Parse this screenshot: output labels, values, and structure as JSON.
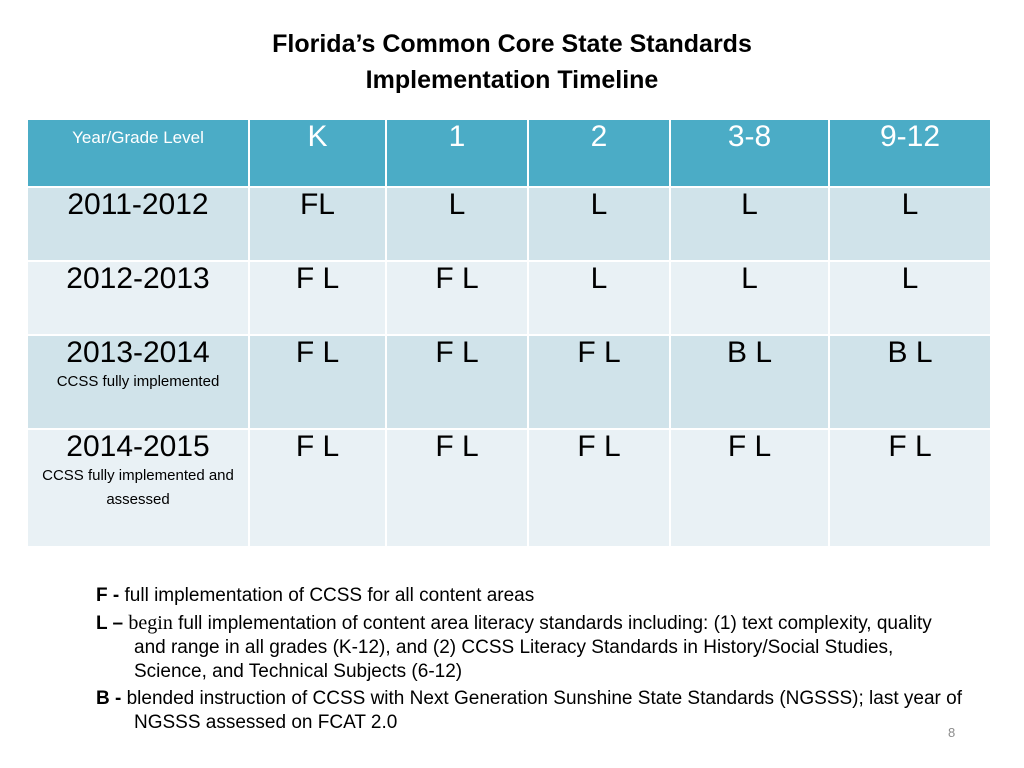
{
  "title": {
    "line1": "Florida’s Common Core State Standards",
    "line2": "Implementation Timeline"
  },
  "table": {
    "headers": [
      "Year/Grade Level",
      "K",
      "1",
      "2",
      "3-8",
      "9-12"
    ],
    "rows": [
      {
        "year": "2011-2012",
        "note": "",
        "cells": [
          "FL",
          "L",
          "L",
          "L",
          "L"
        ]
      },
      {
        "year": "2012-2013",
        "note": "",
        "cells": [
          "F L",
          "F L",
          "L",
          "L",
          "L"
        ]
      },
      {
        "year": "2013-2014",
        "note": "CCSS fully implemented",
        "cells": [
          "F L",
          "F L",
          "F L",
          "B L",
          "B L"
        ]
      },
      {
        "year": "2014-2015",
        "note": "CCSS fully implemented and assessed",
        "cells": [
          "F L",
          "F L",
          "F L",
          "F L",
          "F L"
        ]
      }
    ]
  },
  "legend": [
    {
      "key": "F -",
      "prefix": "",
      "text": "full implementation of CCSS for all content areas"
    },
    {
      "key": "L –",
      "prefix": "begin",
      "text": "full implementation of content area literacy standards including:  (1) text complexity, quality and range in all grades (K-12), and (2) CCSS Literacy Standards in History/Social Studies, Science, and Technical Subjects (6-12)"
    },
    {
      "key": "B -",
      "prefix": "",
      "text": "blended instruction of CCSS with Next Generation Sunshine State Standards (NGSSS); last year of NGSSS assessed on FCAT 2.0"
    }
  ],
  "page_number": "8"
}
